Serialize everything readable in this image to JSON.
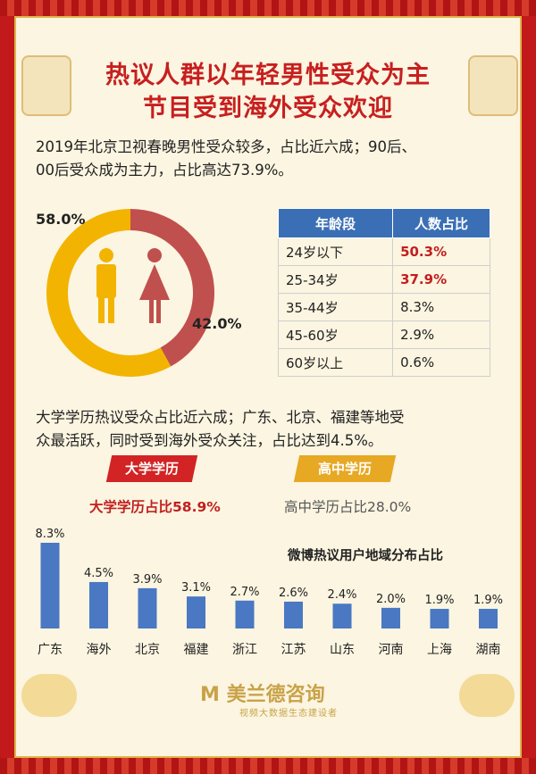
{
  "title_line1": "热议人群以年轻男性受众为主",
  "title_line2": "节目受到海外受众欢迎",
  "paragraph1_line1": "2019年北京卫视春晚男性受众较多，占比近六成；90后、",
  "paragraph1_line2": "00后受众成为主力，占比高达73.9%。",
  "gender": {
    "male_pct": 58.0,
    "female_pct": 42.0,
    "male_label": "58.0%",
    "female_label": "42.0%",
    "male_color": "#f2b400",
    "female_color": "#c0504d"
  },
  "age_table": {
    "headers": [
      "年龄段",
      "人数占比"
    ],
    "rows": [
      {
        "age": "24岁以下",
        "pct": "50.3%"
      },
      {
        "age": "25-34岁",
        "pct": "37.9%"
      },
      {
        "age": "35-44岁",
        "pct": "8.3%"
      },
      {
        "age": "45-60岁",
        "pct": "2.9%"
      },
      {
        "age": "60岁以上",
        "pct": "0.6%"
      }
    ]
  },
  "paragraph2_line1": "大学学历热议受众占比近六成；广东、北京、福建等地受",
  "paragraph2_line2": "众最活跃，同时受到海外受众关注，占比达到4.5%。",
  "ribbon_university": "大学学历",
  "ribbon_highschool": "高中学历",
  "edu_university_text": "大学学历占比58.9%",
  "edu_highschool_text": "高中学历占比28.0%",
  "chart_data": {
    "type": "bar",
    "title": "微博热议用户地域分布占比",
    "categories": [
      "广东",
      "海外",
      "北京",
      "福建",
      "浙江",
      "江苏",
      "山东",
      "河南",
      "上海",
      "湖南"
    ],
    "values": [
      8.3,
      4.5,
      3.9,
      3.1,
      2.7,
      2.6,
      2.4,
      2.0,
      1.9,
      1.9
    ],
    "value_labels": [
      "8.3%",
      "4.5%",
      "3.9%",
      "3.1%",
      "2.7%",
      "2.6%",
      "2.4%",
      "2.0%",
      "1.9%",
      "1.9%"
    ],
    "ylim": [
      0,
      8.3
    ],
    "color": "#4a78c2"
  },
  "logo": {
    "name": "美兰德咨询",
    "mark": "M",
    "tagline": "视频大数据生态建设者"
  }
}
